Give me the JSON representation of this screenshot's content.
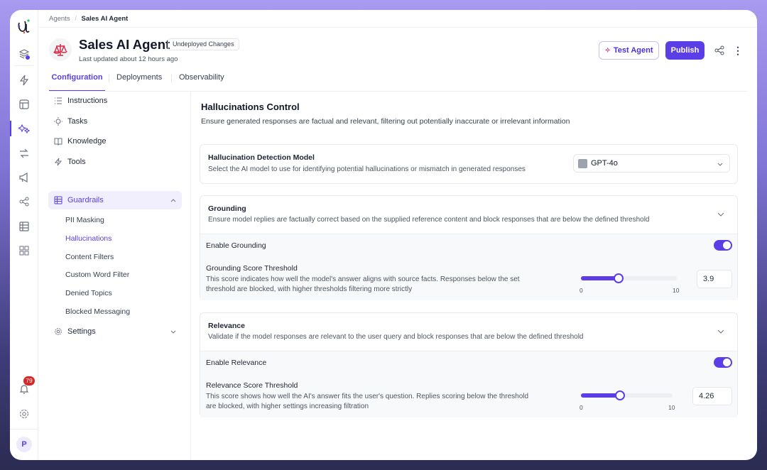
{
  "breadcrumb": {
    "root": "Agents",
    "separator": "/",
    "current": "Sales AI Agent"
  },
  "header": {
    "title": "Sales AI Agent",
    "badge": "Undeployed Changes",
    "updated": "Last updated about 12 hours ago",
    "test_label": "Test Agent",
    "publish_label": "Publish"
  },
  "tabs": [
    {
      "label": "Configuration",
      "active": true
    },
    {
      "label": "Deployments"
    },
    {
      "label": "Observability"
    }
  ],
  "rail": {
    "notification_count": "79",
    "avatar": "P"
  },
  "nav": {
    "items": [
      "Instructions",
      "Tasks",
      "Knowledge",
      "Tools",
      "Guardrails"
    ],
    "guardrail_items": [
      "PII Masking",
      "Hallucinations",
      "Content Filters",
      "Custom Word Filter",
      "Denied Topics",
      "Blocked Messaging"
    ],
    "settings": "Settings",
    "active_sub": "Hallucinations"
  },
  "main": {
    "title": "Hallucinations Control",
    "subtitle": "Ensure generated responses are factual and relevant, filtering out potentially inaccurate or irrelevant information",
    "model": {
      "title": "Hallucination Detection Model",
      "desc": "Select the AI model to use for identifying potential hallucinations or mismatch in generated responses",
      "value": "GPT-4o"
    },
    "grounding": {
      "title": "Grounding",
      "desc": "Ensure model replies are factually correct based on the supplied reference content and block responses that are below the defined threshold",
      "enable": "Enable Grounding",
      "enabled": true,
      "threshold_title": "Grounding Score Threshold",
      "threshold_desc1": "This score indicates how well the model's answer aligns with source facts. Responses below the set",
      "threshold_desc2": "threshold are blocked, with higher thresholds filtering more strictly",
      "min": "0",
      "max": "10",
      "value": "3.9"
    },
    "relevance": {
      "title": "Relevance",
      "desc": "Validate if the model responses are relevant to the user query and block responses that are below the defined threshold",
      "enable": "Enable Relevance",
      "enabled": true,
      "threshold_title": "Relevance Score Threshold",
      "threshold_desc1": "This score shows how well the AI's answer fits the user's question. Replies scoring below the threshold",
      "threshold_desc2": "are blocked, with higher settings increasing filtration",
      "min": "0",
      "max": "10",
      "value": "4.26"
    }
  },
  "colors": {
    "accent": "#5b3ee6",
    "badge_red": "#dc2626"
  }
}
